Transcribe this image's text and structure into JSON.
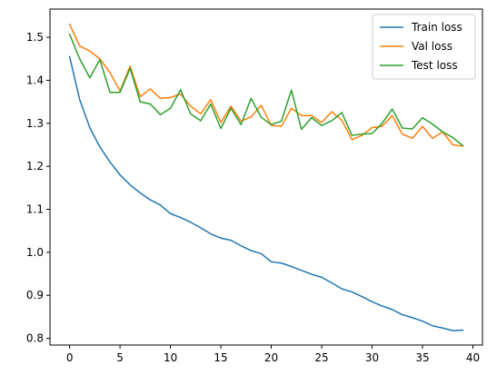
{
  "chart_data": {
    "type": "line",
    "x": [
      0,
      1,
      2,
      3,
      4,
      5,
      6,
      7,
      8,
      9,
      10,
      11,
      12,
      13,
      14,
      15,
      16,
      17,
      18,
      19,
      20,
      21,
      22,
      23,
      24,
      25,
      26,
      27,
      28,
      29,
      30,
      31,
      32,
      33,
      34,
      35,
      36,
      37,
      38,
      39
    ],
    "series": [
      {
        "name": "Train loss",
        "color": "#1f77b4",
        "values": [
          1.455,
          1.355,
          1.29,
          1.245,
          1.21,
          1.18,
          1.157,
          1.138,
          1.122,
          1.11,
          1.09,
          1.081,
          1.07,
          1.057,
          1.043,
          1.033,
          1.028,
          1.015,
          1.004,
          0.997,
          0.978,
          0.975,
          0.967,
          0.958,
          0.949,
          0.942,
          0.929,
          0.915,
          0.908,
          0.897,
          0.885,
          0.875,
          0.867,
          0.855,
          0.848,
          0.84,
          0.829,
          0.824,
          0.818,
          0.819
        ]
      },
      {
        "name": "Val loss",
        "color": "#ff7f0e",
        "values": [
          1.53,
          1.48,
          1.468,
          1.45,
          1.418,
          1.375,
          1.433,
          1.362,
          1.38,
          1.358,
          1.36,
          1.368,
          1.34,
          1.322,
          1.355,
          1.302,
          1.34,
          1.305,
          1.315,
          1.342,
          1.295,
          1.293,
          1.335,
          1.318,
          1.318,
          1.302,
          1.327,
          1.307,
          1.262,
          1.272,
          1.29,
          1.293,
          1.318,
          1.275,
          1.265,
          1.293,
          1.265,
          1.28,
          1.25,
          1.247
        ]
      },
      {
        "name": "Test loss",
        "color": "#2ca02c",
        "values": [
          1.507,
          1.45,
          1.406,
          1.448,
          1.372,
          1.372,
          1.428,
          1.35,
          1.345,
          1.32,
          1.335,
          1.378,
          1.322,
          1.306,
          1.345,
          1.288,
          1.335,
          1.297,
          1.358,
          1.314,
          1.297,
          1.305,
          1.377,
          1.286,
          1.313,
          1.295,
          1.306,
          1.325,
          1.272,
          1.275,
          1.276,
          1.3,
          1.333,
          1.289,
          1.287,
          1.313,
          1.298,
          1.28,
          1.267,
          1.248
        ]
      }
    ],
    "xlim": [
      -1.95,
      40.95
    ],
    "ylim": [
      0.7844,
      1.5656
    ],
    "xticks": [
      0,
      5,
      10,
      15,
      20,
      25,
      30,
      35,
      40
    ],
    "yticks": [
      0.8,
      0.9,
      1.0,
      1.1,
      1.2,
      1.3,
      1.4,
      1.5
    ],
    "xtick_labels": [
      "0",
      "5",
      "10",
      "15",
      "20",
      "25",
      "30",
      "35",
      "40"
    ],
    "ytick_labels": [
      "0.8",
      "0.9",
      "1.0",
      "1.1",
      "1.2",
      "1.3",
      "1.4",
      "1.5"
    ],
    "legend_position": "top-right",
    "grid": false,
    "title": "",
    "xlabel": "",
    "ylabel": ""
  }
}
